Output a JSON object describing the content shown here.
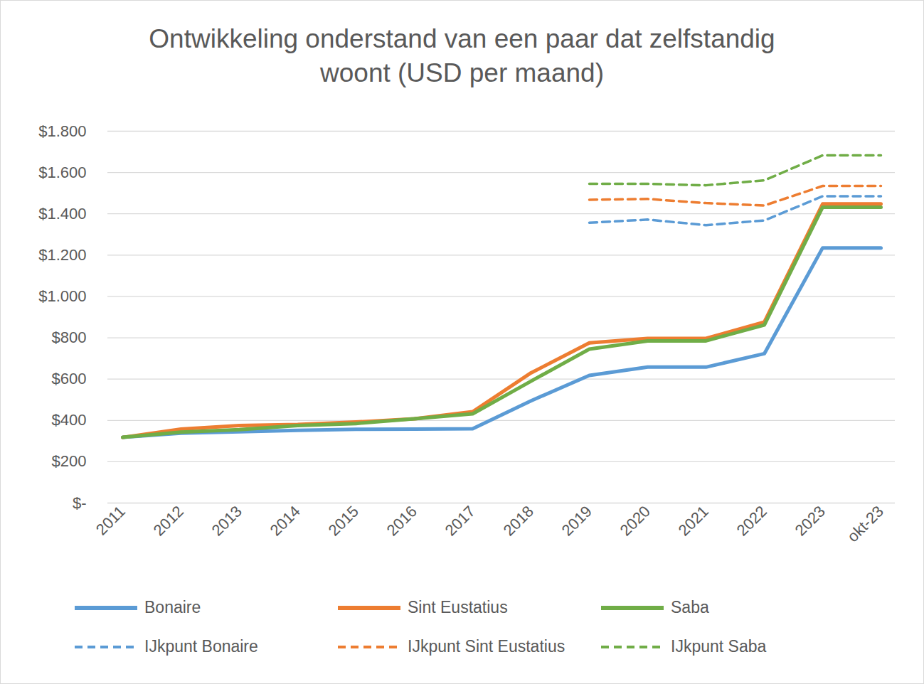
{
  "chart_data": {
    "type": "line",
    "title": "Ontwikkeling onderstand van een paar dat zelfstandig woont (USD per maand)",
    "categories": [
      "2011",
      "2012",
      "2013",
      "2014",
      "2015",
      "2016",
      "2017",
      "2018",
      "2019",
      "2020",
      "2021",
      "2022",
      "2023",
      "okt-23"
    ],
    "series": [
      {
        "name": "Bonaire",
        "color": "#5b9bd5",
        "line_style": "solid",
        "values": [
          318,
          338,
          345,
          352,
          357,
          358,
          360,
          495,
          618,
          658,
          658,
          723,
          1235,
          1235
        ]
      },
      {
        "name": "Sint Eustatius",
        "color": "#ed7d31",
        "line_style": "solid",
        "values": [
          318,
          358,
          375,
          380,
          392,
          408,
          442,
          630,
          775,
          797,
          797,
          876,
          1448,
          1448
        ]
      },
      {
        "name": "Saba",
        "color": "#70ad47",
        "line_style": "solid",
        "values": [
          318,
          343,
          355,
          375,
          385,
          408,
          432,
          590,
          745,
          785,
          785,
          862,
          1432,
          1432
        ]
      },
      {
        "name": "IJkpunt Bonaire",
        "color": "#5b9bd5",
        "line_style": "dashed",
        "values": [
          null,
          null,
          null,
          null,
          null,
          null,
          null,
          null,
          1357,
          1372,
          1345,
          1368,
          1485,
          1485
        ]
      },
      {
        "name": "IJkpunt Sint Eustatius",
        "color": "#ed7d31",
        "line_style": "dashed",
        "values": [
          null,
          null,
          null,
          null,
          null,
          null,
          null,
          null,
          1468,
          1472,
          1452,
          1440,
          1535,
          1535
        ]
      },
      {
        "name": "IJkpunt Saba",
        "color": "#70ad47",
        "line_style": "dashed",
        "values": [
          null,
          null,
          null,
          null,
          null,
          null,
          null,
          null,
          1545,
          1545,
          1538,
          1562,
          1683,
          1683
        ]
      }
    ],
    "ylim": [
      0,
      1800
    ],
    "yticks": [
      {
        "value": 0,
        "label": "$-"
      },
      {
        "value": 200,
        "label": "$200"
      },
      {
        "value": 400,
        "label": "$400"
      },
      {
        "value": 600,
        "label": "$600"
      },
      {
        "value": 800,
        "label": "$800"
      },
      {
        "value": 1000,
        "label": "$1.000"
      },
      {
        "value": 1200,
        "label": "$1.200"
      },
      {
        "value": 1400,
        "label": "$1.400"
      },
      {
        "value": 1600,
        "label": "$1.600"
      },
      {
        "value": 1800,
        "label": "$1.800"
      }
    ],
    "grid": true,
    "legend": "bottom"
  }
}
